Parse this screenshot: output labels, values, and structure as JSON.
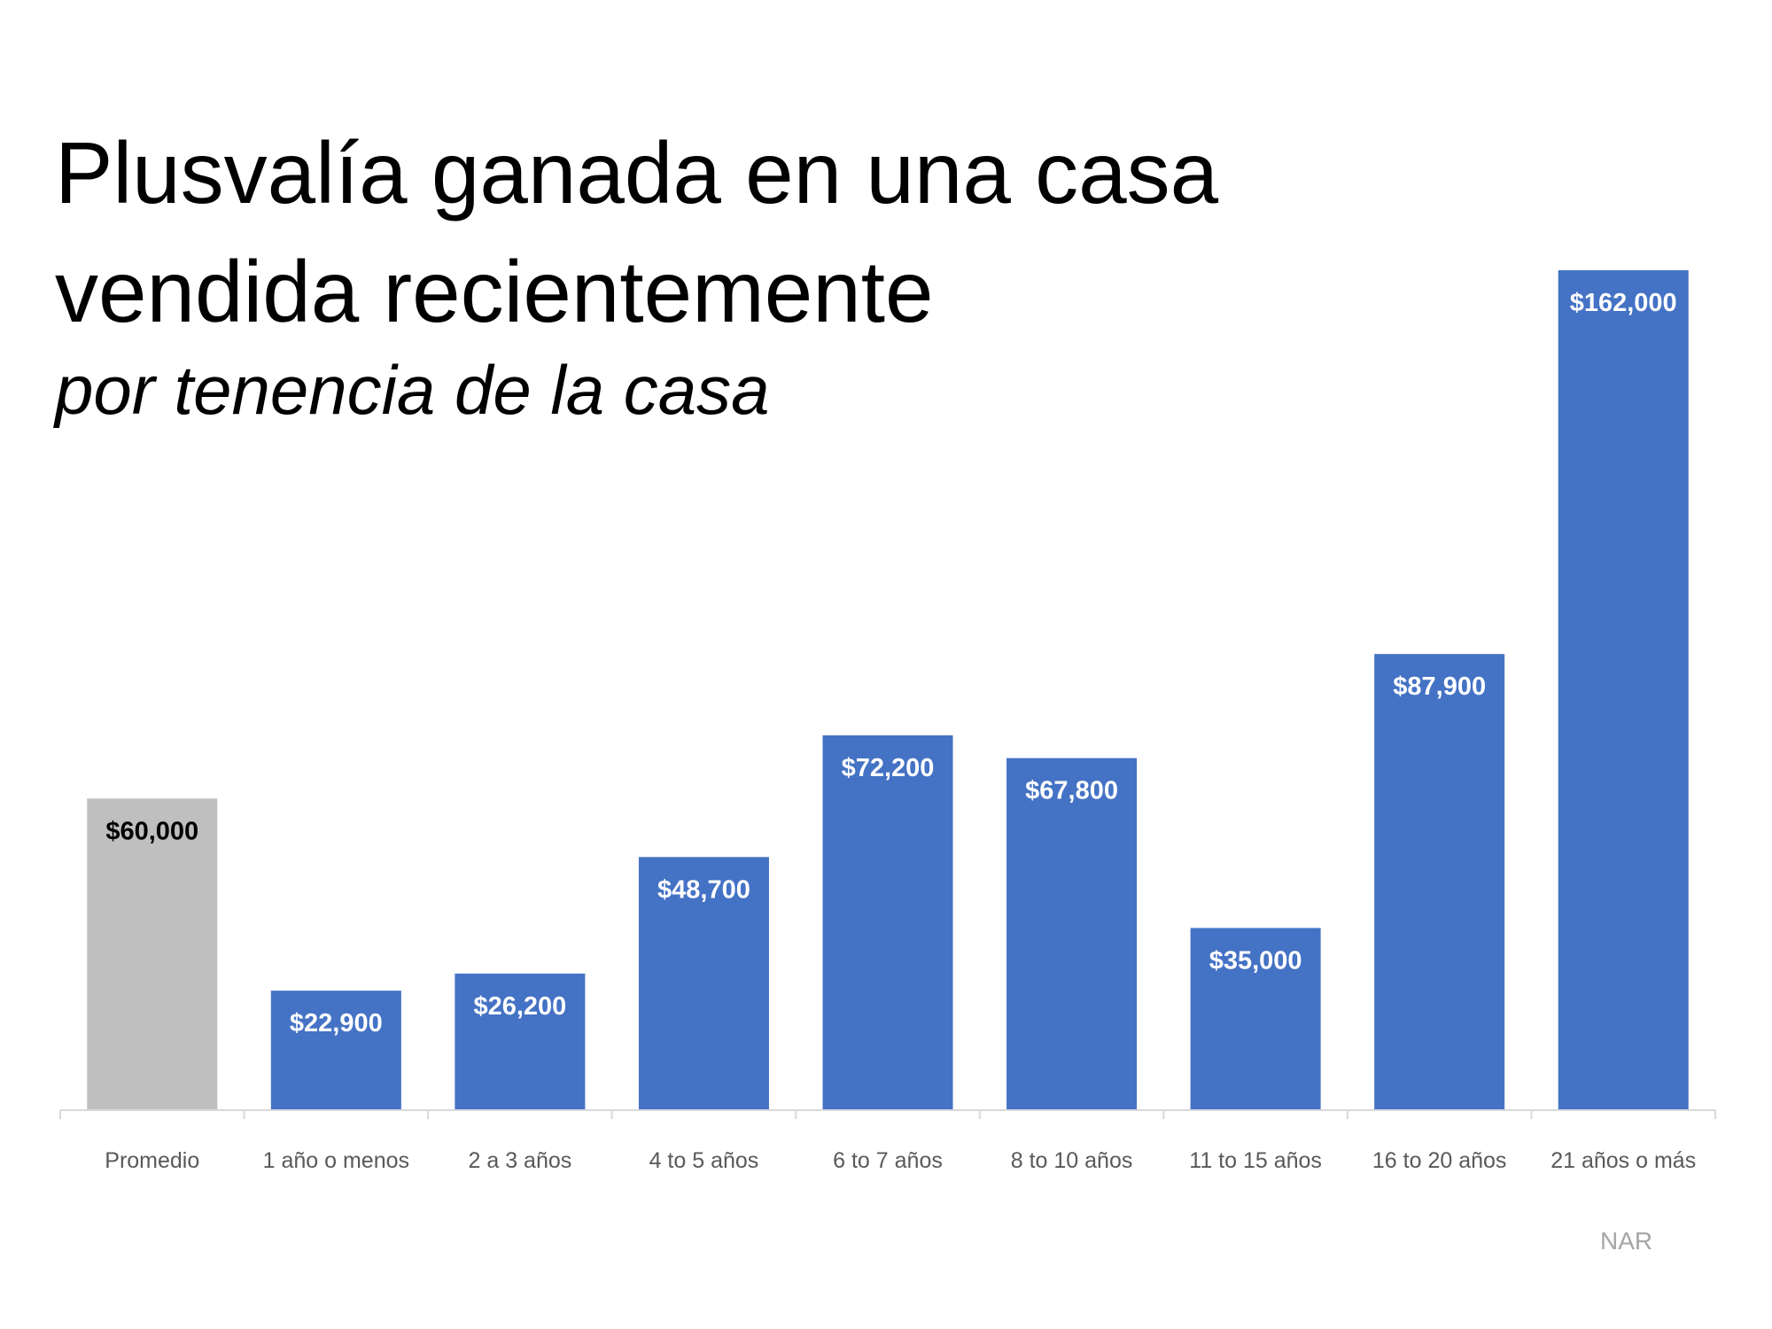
{
  "chart_data": {
    "type": "bar",
    "title": "Plusvalía ganada en una casa vendida recientemente",
    "title_lines": [
      "Plusvalía ganada en una casa",
      "vendida recientemente"
    ],
    "subtitle": "por tenencia de la casa",
    "categories": [
      "Promedio",
      "1 año o menos",
      "2 a 3 años",
      "4 to 5 años",
      "6 to 7 años",
      "8 to 10 años",
      "11 to 15 años",
      "16 to 20 años",
      "21 años o más"
    ],
    "values": [
      60000,
      22900,
      26200,
      48700,
      72200,
      67800,
      35000,
      87900,
      162000
    ],
    "data_labels": [
      "$60,000",
      "$22,900",
      "$26,200",
      "$48,700",
      "$72,200",
      "$67,800",
      "$35,000",
      "$87,900",
      "$162,000"
    ],
    "bar_colors": [
      "#bfbfbf",
      "#4472c4",
      "#4472c4",
      "#4472c4",
      "#4472c4",
      "#4472c4",
      "#4472c4",
      "#4472c4",
      "#4472c4"
    ],
    "label_colors": [
      "#000000",
      "#ffffff",
      "#ffffff",
      "#ffffff",
      "#ffffff",
      "#ffffff",
      "#ffffff",
      "#ffffff",
      "#ffffff"
    ],
    "ylim": [
      0,
      162000
    ],
    "grid": false,
    "legend": "none",
    "source": "NAR"
  }
}
